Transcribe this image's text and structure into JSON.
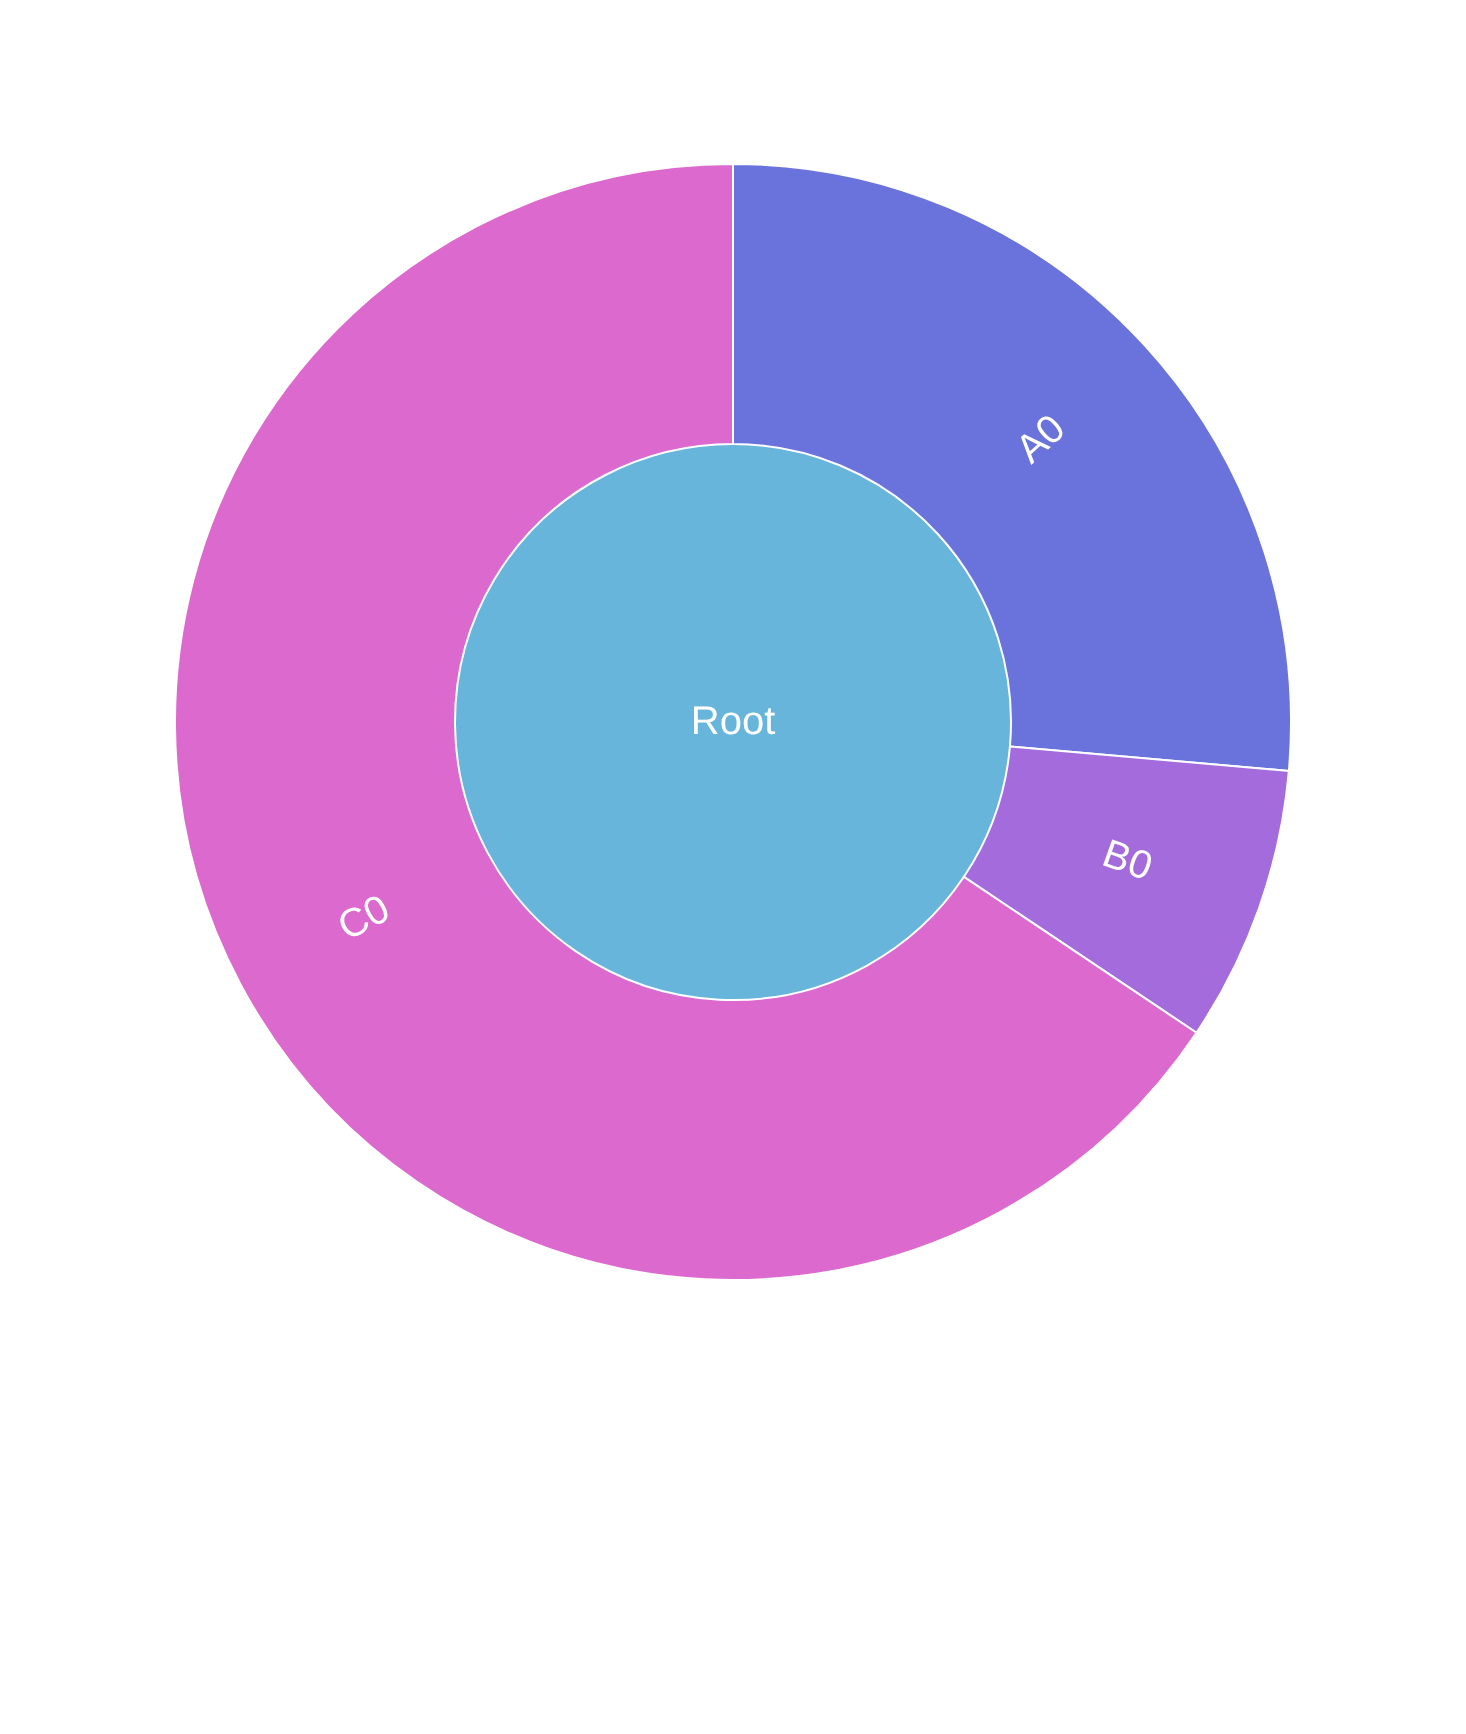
{
  "chart_data": {
    "type": "donut",
    "categories": [
      "A0",
      "B0",
      "C0"
    ],
    "series": [
      {
        "values": [
          26.4,
          8.0,
          65.6
        ],
        "colors": [
          "#6a73dc",
          "#a36bdc",
          "#dc69cd"
        ]
      },
      {
        "name": "Root",
        "color": "#67b5da",
        "values": [
          26.4,
          8.0,
          65.6
        ]
      }
    ]
  }
}
